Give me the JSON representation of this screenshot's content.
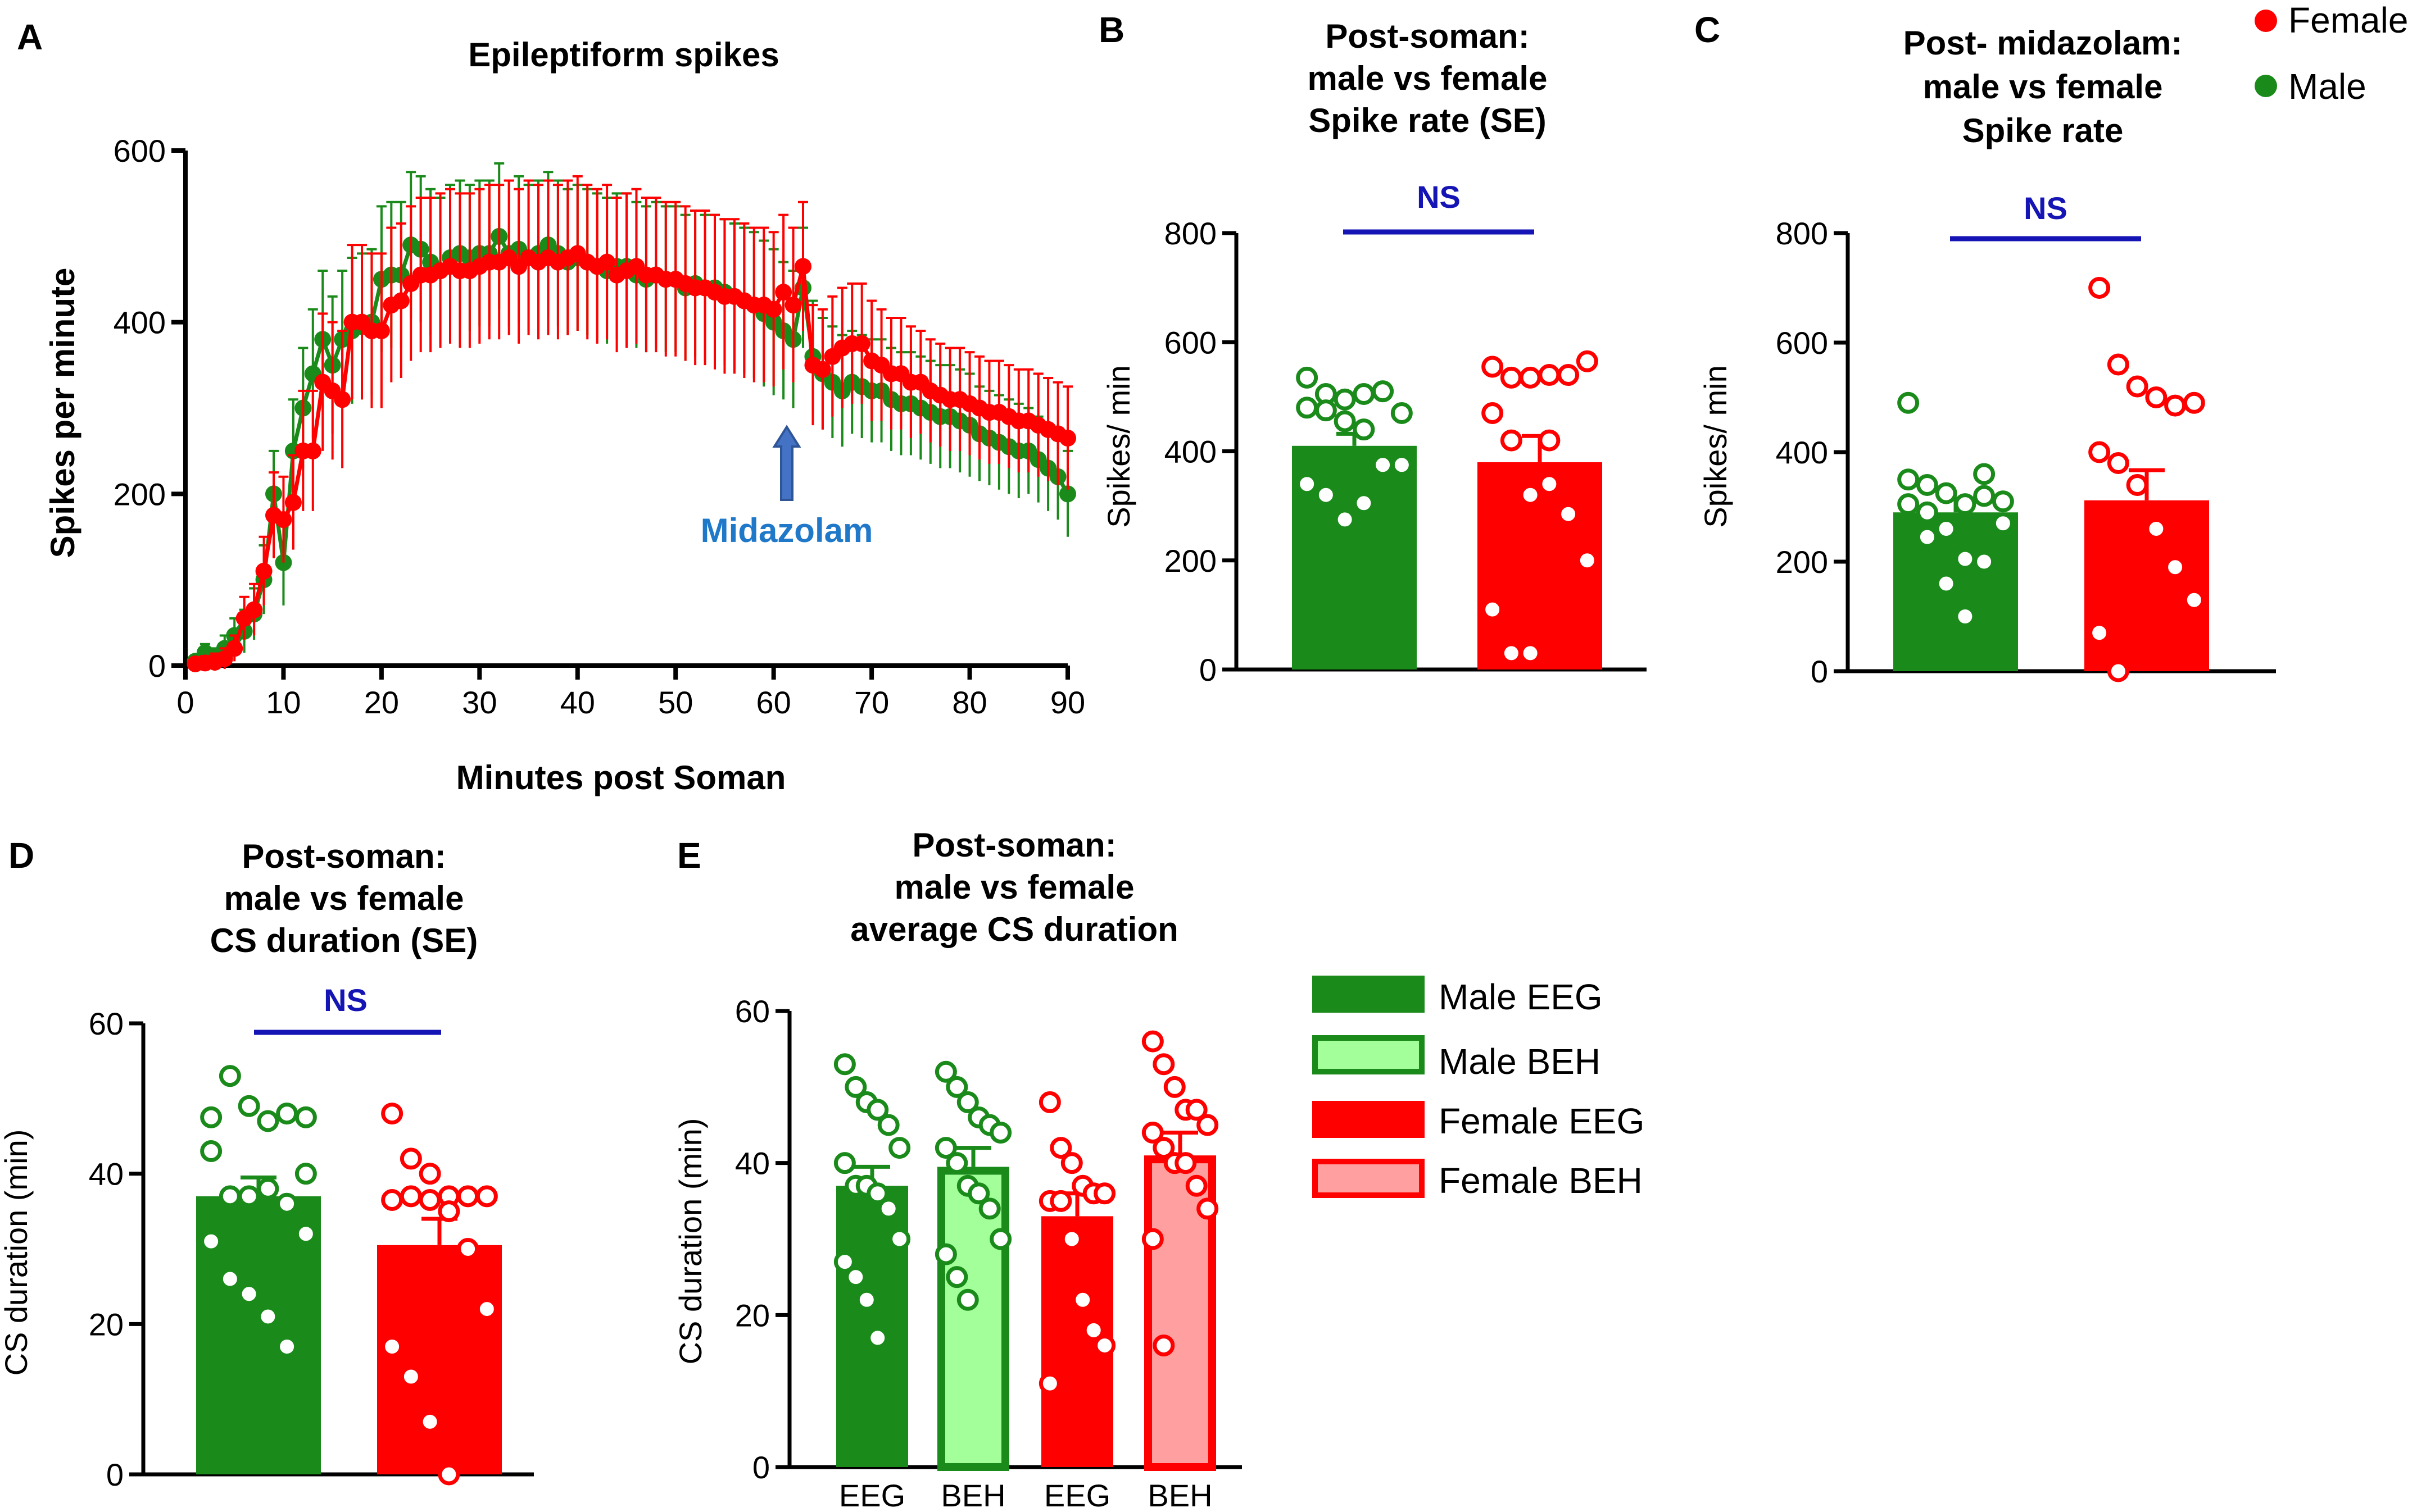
{
  "colors": {
    "male": "#1a8a1a",
    "female": "#ff0000",
    "male_light": "#a3ff9a",
    "female_light": "#ff9f9f",
    "ns": "#1515b5",
    "arrow": "#4472c4",
    "midazolam_text": "#1f78c8"
  },
  "legend_top": {
    "female": "Female",
    "male": "Male"
  },
  "legend_e": [
    "Male EEG",
    "Male BEH",
    "Female EEG",
    "Female BEH"
  ],
  "chart_data": [
    {
      "id": "A",
      "panel_label": "A",
      "type": "line",
      "title": "Epileptiform spikes",
      "xlabel": "Minutes post Soman",
      "ylabel": "Spikes per minute",
      "xlim": [
        0,
        90
      ],
      "ylim": [
        0,
        600
      ],
      "xticks": [
        0,
        10,
        20,
        30,
        40,
        50,
        60,
        70,
        80,
        90
      ],
      "yticks": [
        0,
        200,
        400,
        600
      ],
      "annotation": "Midazolam",
      "annotation_x": 62,
      "series": [
        {
          "name": "Female",
          "x": [
            1,
            2,
            3,
            4,
            5,
            6,
            7,
            8,
            9,
            10,
            11,
            12,
            13,
            14,
            15,
            16,
            17,
            18,
            19,
            20,
            21,
            22,
            23,
            24,
            25,
            26,
            27,
            28,
            29,
            30,
            31,
            32,
            33,
            34,
            35,
            36,
            37,
            38,
            39,
            40,
            41,
            42,
            43,
            44,
            45,
            46,
            47,
            48,
            49,
            50,
            51,
            52,
            53,
            54,
            55,
            56,
            57,
            58,
            59,
            60,
            61,
            62,
            63,
            64,
            65,
            66,
            67,
            68,
            69,
            70,
            71,
            72,
            73,
            74,
            75,
            76,
            77,
            78,
            79,
            80,
            81,
            82,
            83,
            84,
            85,
            86,
            87,
            88,
            89,
            90
          ],
          "values": [
            2,
            3,
            4,
            8,
            20,
            55,
            65,
            110,
            175,
            170,
            190,
            250,
            250,
            330,
            320,
            310,
            400,
            400,
            390,
            390,
            420,
            425,
            445,
            455,
            455,
            460,
            465,
            460,
            460,
            465,
            470,
            470,
            475,
            465,
            475,
            470,
            475,
            470,
            475,
            480,
            470,
            465,
            470,
            455,
            460,
            465,
            455,
            455,
            450,
            450,
            445,
            440,
            440,
            435,
            430,
            430,
            425,
            420,
            420,
            415,
            435,
            420,
            465,
            350,
            345,
            360,
            370,
            375,
            375,
            355,
            350,
            340,
            340,
            330,
            330,
            320,
            315,
            310,
            310,
            305,
            300,
            295,
            295,
            290,
            285,
            285,
            280,
            275,
            270,
            265
          ],
          "errors": [
            5,
            8,
            10,
            12,
            15,
            25,
            30,
            40,
            50,
            50,
            55,
            70,
            70,
            80,
            80,
            80,
            90,
            90,
            90,
            90,
            90,
            90,
            90,
            90,
            90,
            90,
            90,
            90,
            90,
            90,
            90,
            90,
            90,
            90,
            90,
            90,
            90,
            90,
            90,
            90,
            90,
            90,
            90,
            90,
            90,
            90,
            90,
            90,
            90,
            90,
            90,
            90,
            90,
            90,
            90,
            90,
            90,
            90,
            90,
            90,
            90,
            90,
            75,
            70,
            70,
            70,
            70,
            70,
            70,
            70,
            65,
            65,
            65,
            65,
            60,
            60,
            60,
            60,
            60,
            60,
            60,
            60,
            60,
            60,
            60,
            60,
            60,
            60,
            60,
            60
          ]
        },
        {
          "name": "Male",
          "x": [
            1,
            2,
            3,
            4,
            5,
            6,
            7,
            8,
            9,
            10,
            11,
            12,
            13,
            14,
            15,
            16,
            17,
            18,
            19,
            20,
            21,
            22,
            23,
            24,
            25,
            26,
            27,
            28,
            29,
            30,
            31,
            32,
            33,
            34,
            35,
            36,
            37,
            38,
            39,
            40,
            41,
            42,
            43,
            44,
            45,
            46,
            47,
            48,
            49,
            50,
            51,
            52,
            53,
            54,
            55,
            56,
            57,
            58,
            59,
            60,
            61,
            62,
            63,
            64,
            65,
            66,
            67,
            68,
            69,
            70,
            71,
            72,
            73,
            74,
            75,
            76,
            77,
            78,
            79,
            80,
            81,
            82,
            83,
            84,
            85,
            86,
            87,
            88,
            89,
            90
          ],
          "values": [
            5,
            15,
            10,
            20,
            35,
            40,
            60,
            100,
            200,
            120,
            250,
            300,
            340,
            380,
            350,
            380,
            390,
            395,
            400,
            450,
            455,
            455,
            490,
            485,
            470,
            460,
            475,
            480,
            475,
            480,
            480,
            500,
            480,
            485,
            475,
            480,
            490,
            480,
            470,
            475,
            470,
            465,
            460,
            465,
            465,
            455,
            450,
            455,
            450,
            450,
            440,
            445,
            440,
            440,
            435,
            430,
            425,
            420,
            410,
            400,
            390,
            380,
            440,
            360,
            340,
            330,
            320,
            330,
            325,
            320,
            320,
            310,
            305,
            305,
            300,
            295,
            290,
            290,
            285,
            280,
            270,
            265,
            260,
            255,
            250,
            250,
            240,
            230,
            220,
            200
          ],
          "errors": [
            5,
            10,
            10,
            15,
            20,
            25,
            30,
            40,
            50,
            50,
            60,
            70,
            75,
            80,
            80,
            80,
            85,
            85,
            85,
            85,
            85,
            85,
            85,
            85,
            85,
            85,
            85,
            85,
            85,
            85,
            85,
            85,
            85,
            85,
            85,
            85,
            85,
            85,
            85,
            85,
            85,
            85,
            85,
            85,
            85,
            85,
            85,
            85,
            85,
            85,
            85,
            85,
            85,
            85,
            85,
            85,
            85,
            85,
            85,
            85,
            80,
            80,
            70,
            65,
            65,
            65,
            65,
            60,
            60,
            60,
            60,
            60,
            60,
            60,
            60,
            60,
            60,
            60,
            60,
            60,
            55,
            55,
            55,
            55,
            55,
            50,
            50,
            50,
            50,
            50
          ]
        }
      ]
    },
    {
      "id": "B",
      "panel_label": "B",
      "type": "bar",
      "title": [
        "Post-soman:",
        "male vs female",
        "Spike rate (SE)"
      ],
      "ylabel": "Spikes/ min",
      "ylim": [
        0,
        800
      ],
      "yticks": [
        0,
        200,
        400,
        600,
        800
      ],
      "significance": "NS",
      "categories": [
        "Male",
        "Female"
      ],
      "values": [
        410,
        380
      ],
      "errors": [
        22,
        48
      ],
      "points": [
        [
          535,
          505,
          495,
          505,
          510,
          470,
          480,
          475,
          455,
          440,
          375,
          375,
          340,
          320,
          275,
          305
        ],
        [
          555,
          535,
          535,
          540,
          540,
          565,
          470,
          420,
          320,
          340,
          285,
          200,
          110,
          30,
          30,
          420
        ]
      ]
    },
    {
      "id": "C",
      "panel_label": "C",
      "type": "bar",
      "title": [
        "Post- midazolam:",
        "male vs female",
        "Spike rate"
      ],
      "ylabel": "Spikes/ min",
      "ylim": [
        0,
        800
      ],
      "yticks": [
        0,
        200,
        400,
        600,
        800
      ],
      "significance": "NS",
      "categories": [
        "Male",
        "Female"
      ],
      "values": [
        290,
        312
      ],
      "errors": [
        25,
        55
      ],
      "points": [
        [
          350,
          340,
          325,
          305,
          320,
          310,
          305,
          290,
          260,
          205,
          200,
          270,
          490,
          245,
          160,
          100,
          360
        ],
        [
          700,
          560,
          520,
          500,
          485,
          490,
          400,
          380,
          340,
          260,
          190,
          130,
          70,
          0
        ]
      ]
    },
    {
      "id": "D",
      "panel_label": "D",
      "type": "bar",
      "title": [
        "Post-soman:",
        "male vs female",
        "CS duration (SE)"
      ],
      "ylabel": "CS duration (min)",
      "ylim": [
        0,
        60
      ],
      "yticks": [
        0,
        20,
        40,
        60
      ],
      "significance": "NS",
      "categories": [
        "Male",
        "Female"
      ],
      "values": [
        37,
        30.5
      ],
      "errors": [
        2.5,
        3.5
      ],
      "points": [
        [
          47.5,
          53,
          49,
          47,
          48,
          47.5,
          43,
          37,
          37,
          38,
          36,
          32,
          31,
          26,
          24,
          21,
          17,
          40
        ],
        [
          48,
          42,
          40,
          37,
          37,
          37,
          36.5,
          37,
          36.5,
          35,
          30,
          22,
          17,
          13,
          7,
          0
        ]
      ]
    },
    {
      "id": "E",
      "panel_label": "E",
      "type": "bar",
      "title": [
        "Post-soman:",
        "male vs female",
        "average CS duration"
      ],
      "ylabel": "CS duration (min)",
      "ylim": [
        0,
        60
      ],
      "yticks": [
        0,
        20,
        40,
        60
      ],
      "categories": [
        "EEG",
        "BEH",
        "EEG",
        "BEH"
      ],
      "values": [
        37,
        39.5,
        33,
        41
      ],
      "errors": [
        2.5,
        2.5,
        3,
        3
      ],
      "points": [
        [
          53,
          50,
          48,
          47,
          45,
          42,
          40,
          37,
          37,
          36,
          34,
          30,
          27,
          25,
          22,
          17
        ],
        [
          52,
          50,
          48,
          46,
          45,
          44,
          42,
          40,
          37,
          36,
          34,
          30,
          28,
          25,
          22
        ],
        [
          48,
          42,
          40,
          37,
          36,
          36,
          35,
          35,
          30,
          22,
          18,
          16,
          11
        ],
        [
          56,
          53,
          50,
          47,
          47,
          45,
          44,
          42,
          40,
          40,
          37,
          34,
          30,
          16
        ]
      ]
    }
  ]
}
